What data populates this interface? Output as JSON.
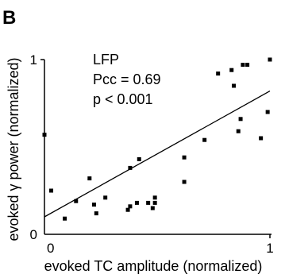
{
  "panel_label": "B",
  "chart_data": {
    "type": "scatter",
    "title": "",
    "xlabel": "evoked TC amplitude (normalized)",
    "ylabel": "evoked γ power (normalized)",
    "xlim": [
      0,
      1
    ],
    "ylim": [
      0,
      1
    ],
    "x_ticks": [
      "0",
      "1"
    ],
    "y_ticks": [
      "0",
      "1"
    ],
    "annotations": [
      "LFP",
      "Pcc = 0.69",
      "p < 0.001"
    ],
    "grid": false,
    "legend": "none",
    "marker_color": "#000000",
    "series": [
      {
        "x": [
          0.0,
          0.03,
          0.09,
          0.14,
          0.2,
          0.22,
          0.23,
          0.27,
          0.37,
          0.38,
          0.38,
          0.41,
          0.42,
          0.46,
          0.48,
          0.49,
          0.49,
          0.62,
          0.62,
          0.71,
          0.77,
          0.83,
          0.84,
          0.86,
          0.87,
          0.88,
          0.9,
          0.96,
          0.99,
          1.0
        ],
        "y": [
          0.57,
          0.25,
          0.09,
          0.19,
          0.32,
          0.17,
          0.12,
          0.21,
          0.14,
          0.16,
          0.38,
          0.18,
          0.43,
          0.18,
          0.15,
          0.21,
          0.18,
          0.44,
          0.3,
          0.54,
          0.92,
          0.94,
          0.85,
          0.59,
          0.66,
          0.97,
          0.97,
          0.55,
          0.7,
          1.0
        ]
      }
    ],
    "fit_line": {
      "x": [
        0,
        1
      ],
      "y": [
        0.1,
        0.82
      ]
    }
  }
}
